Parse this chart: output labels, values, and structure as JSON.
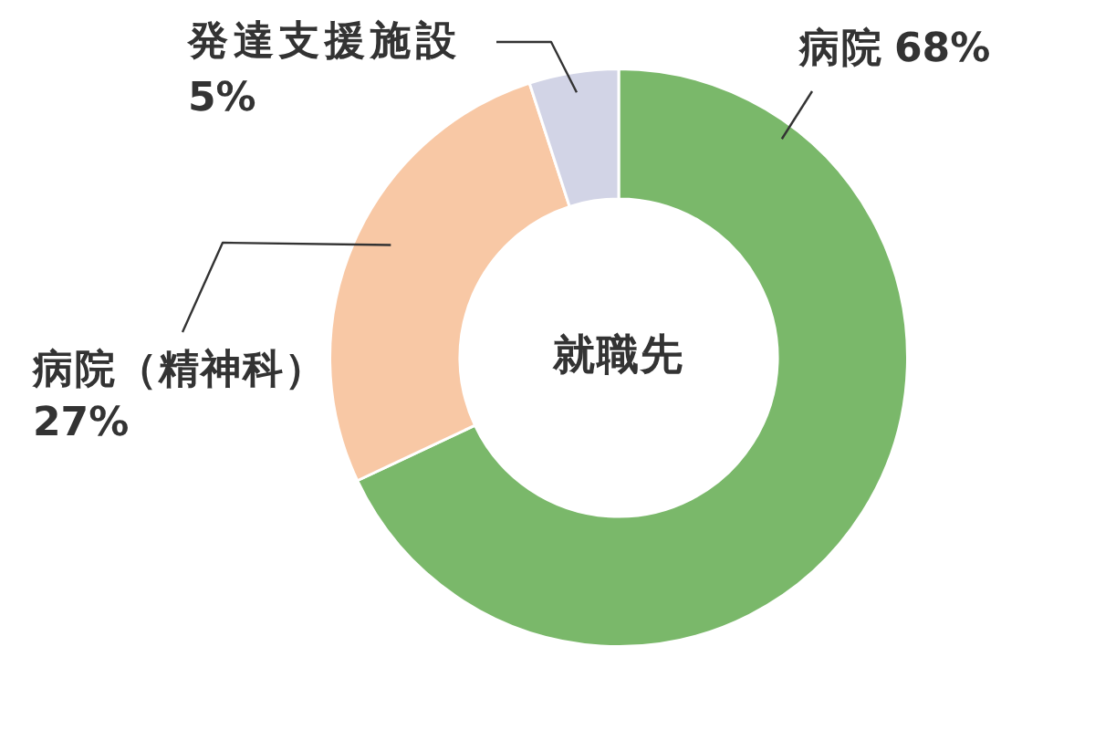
{
  "chart_data": {
    "type": "donut",
    "title": "就職先",
    "categories": [
      "病院",
      "病院（精神科）",
      "発達支援施設"
    ],
    "values": [
      68,
      27,
      5
    ],
    "colors": [
      "#7ab86a",
      "#f8c8a5",
      "#d2d4e6"
    ],
    "value_labels": [
      "68%",
      "27%",
      "5%"
    ]
  }
}
